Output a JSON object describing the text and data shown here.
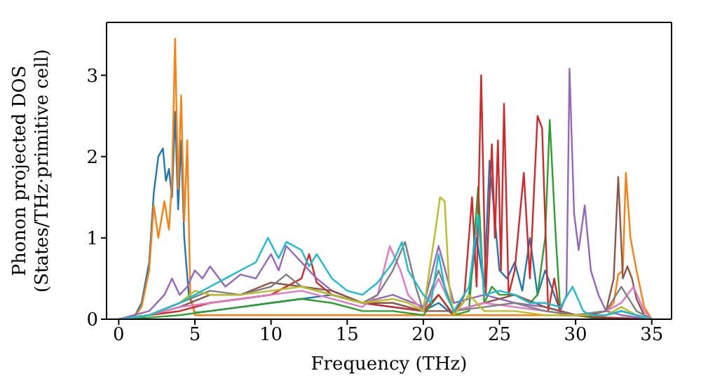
{
  "chart_data": {
    "type": "line",
    "xlabel": "Frequency (THz)",
    "ylabel": "Phonon projected DOS\n(States/THz·primitive cell)",
    "xlim": [
      -0.8,
      36.3
    ],
    "ylim": [
      0,
      3.65
    ],
    "xticks": [
      0,
      5,
      10,
      15,
      20,
      25,
      30,
      35
    ],
    "yticks": [
      0,
      1,
      2,
      3
    ],
    "marker": "none",
    "line_style": "solid",
    "series": [
      {
        "color": "#1f77b4",
        "x": [
          0,
          1,
          1.5,
          2,
          2.3,
          2.6,
          2.9,
          3.1,
          3.3,
          3.5,
          3.7,
          3.9,
          4.1,
          4.3,
          4.6,
          5,
          6,
          8,
          10,
          12,
          14,
          16,
          18,
          20,
          21,
          22,
          23,
          23.5,
          24,
          24.35,
          25,
          25.5,
          26,
          26.5,
          27,
          27.5,
          28,
          29,
          30,
          31,
          32,
          33,
          34,
          35
        ],
        "values": [
          0,
          0.02,
          0.2,
          0.7,
          1.55,
          2.0,
          2.1,
          1.7,
          1.85,
          1.5,
          2.55,
          1.35,
          2.2,
          1.0,
          0.3,
          0.08,
          0.1,
          0.15,
          0.2,
          0.25,
          0.3,
          0.2,
          0.15,
          0.1,
          0.2,
          0.05,
          0.3,
          1.0,
          0.4,
          1.95,
          0.6,
          0.5,
          0.7,
          0.35,
          1.0,
          0.3,
          0.6,
          0.1,
          0.05,
          0.05,
          0.05,
          0.1,
          0.05,
          0
        ]
      },
      {
        "color": "#ff7f0e",
        "x": [
          0,
          1,
          1.5,
          2,
          2.3,
          2.6,
          3.0,
          3.3,
          3.5,
          3.7,
          3.9,
          4.1,
          4.3,
          4.5,
          4.7,
          5,
          6,
          8,
          10,
          12,
          14,
          16,
          18,
          20,
          22,
          24,
          26,
          28,
          30,
          32,
          32.5,
          32.8,
          33.1,
          33.3,
          33.6,
          34,
          34.5,
          35
        ],
        "values": [
          0,
          0.02,
          0.15,
          0.6,
          1.4,
          1.0,
          1.45,
          1.1,
          1.7,
          3.45,
          1.6,
          2.75,
          1.2,
          2.2,
          0.3,
          0.05,
          0.05,
          0.05,
          0.05,
          0.05,
          0.05,
          0.05,
          0.05,
          0.05,
          0.05,
          0.05,
          0.05,
          0.05,
          0.05,
          0.1,
          0.2,
          0.55,
          0.6,
          1.8,
          1.0,
          0.6,
          0.15,
          0
        ]
      },
      {
        "color": "#2ca02c",
        "x": [
          0,
          2,
          4,
          6,
          8,
          10,
          12,
          14,
          16,
          18,
          20,
          21,
          22,
          23,
          23.6,
          24,
          24.5,
          25,
          26,
          27,
          27.5,
          28,
          28.3,
          28.7,
          29,
          30,
          31,
          32,
          35
        ],
        "values": [
          0,
          0.02,
          0.05,
          0.1,
          0.15,
          0.2,
          0.25,
          0.2,
          0.1,
          0.1,
          0.05,
          0.3,
          0.05,
          0.1,
          1.63,
          0.2,
          0.4,
          0.3,
          0.3,
          0.2,
          0.3,
          1.0,
          2.45,
          1.0,
          0.1,
          0.05,
          0.02,
          0.02,
          0
        ]
      },
      {
        "color": "#d62728",
        "x": [
          0,
          2,
          4,
          6,
          8,
          10,
          12,
          12.5,
          13,
          14,
          16,
          18,
          20,
          21,
          22,
          22.7,
          23.2,
          23.5,
          23.8,
          24.1,
          24.5,
          24.7,
          24.9,
          25.1,
          25.3,
          25.6,
          26,
          26.6,
          27,
          27.5,
          27.8,
          28.2,
          28.6,
          29,
          30,
          32,
          35
        ],
        "values": [
          0,
          0.05,
          0.1,
          0.2,
          0.25,
          0.3,
          0.5,
          0.8,
          0.45,
          0.3,
          0.2,
          0.15,
          0.1,
          0.3,
          0.05,
          0.3,
          1.5,
          0.4,
          3.0,
          0.3,
          2.15,
          1.0,
          2.2,
          0.6,
          2.65,
          0.3,
          0.6,
          1.8,
          0.5,
          2.5,
          2.35,
          0.1,
          0.5,
          0.05,
          0.05,
          0.02,
          0
        ]
      },
      {
        "color": "#9467bd",
        "x": [
          0,
          2,
          3,
          3.5,
          4,
          4.5,
          5,
          5.5,
          6,
          7,
          8,
          9,
          10,
          10.5,
          11,
          12,
          13,
          14,
          16,
          18,
          20,
          21,
          21.3,
          22,
          24,
          26,
          28,
          29,
          29.4,
          29.6,
          29.9,
          30.2,
          30.6,
          31,
          31.5,
          32,
          33,
          35
        ],
        "values": [
          0,
          0.1,
          0.3,
          0.5,
          0.3,
          0.4,
          0.6,
          0.5,
          0.65,
          0.4,
          0.55,
          0.5,
          0.8,
          0.6,
          0.9,
          0.7,
          0.5,
          0.35,
          0.2,
          0.3,
          0.15,
          0.9,
          0.7,
          0.2,
          0.3,
          0.2,
          0.15,
          0.1,
          0.3,
          3.08,
          1.3,
          0.85,
          1.4,
          0.6,
          0.3,
          0.1,
          0.05,
          0
        ]
      },
      {
        "color": "#8c564b",
        "x": [
          0,
          2,
          4,
          6,
          8,
          10,
          12,
          14,
          16,
          18,
          20,
          22,
          24,
          26,
          28,
          30,
          31,
          32,
          32.5,
          32.8,
          33.1,
          33.4,
          33.7,
          34,
          34.5,
          35
        ],
        "values": [
          0,
          0.05,
          0.15,
          0.3,
          0.3,
          0.45,
          0.4,
          0.35,
          0.2,
          0.2,
          0.1,
          0.1,
          0.2,
          0.3,
          0.15,
          0.05,
          0.05,
          0.1,
          0.5,
          1.75,
          0.5,
          0.65,
          0.5,
          0.25,
          0.05,
          0
        ]
      },
      {
        "color": "#e377c2",
        "x": [
          0,
          2,
          4,
          6,
          8,
          10,
          12,
          14,
          16,
          17,
          17.8,
          18.5,
          19,
          20,
          21,
          22,
          24,
          26,
          28,
          30,
          32,
          33,
          33.8,
          34.5,
          35
        ],
        "values": [
          0,
          0.05,
          0.15,
          0.2,
          0.25,
          0.3,
          0.35,
          0.25,
          0.15,
          0.3,
          0.9,
          0.6,
          0.3,
          0.1,
          0.5,
          0.1,
          0.2,
          0.15,
          0.1,
          0.05,
          0.1,
          0.2,
          0.4,
          0.1,
          0
        ]
      },
      {
        "color": "#7f7f7f",
        "x": [
          0,
          2,
          4,
          6,
          8,
          10,
          11,
          12,
          14,
          16,
          17,
          18,
          18.8,
          19.5,
          20,
          21,
          22,
          24,
          26,
          28,
          30,
          32,
          33,
          34,
          35
        ],
        "values": [
          0,
          0.05,
          0.2,
          0.35,
          0.3,
          0.4,
          0.55,
          0.4,
          0.3,
          0.2,
          0.3,
          0.6,
          0.95,
          0.4,
          0.1,
          0.6,
          0.1,
          0.15,
          0.2,
          0.1,
          0.05,
          0.1,
          0.4,
          0.1,
          0
        ]
      },
      {
        "color": "#bcbd22",
        "x": [
          0,
          2,
          4,
          5,
          6,
          8,
          10,
          12,
          14,
          16,
          18,
          19,
          20,
          20.8,
          21.1,
          21.4,
          21.7,
          22,
          23,
          24,
          26,
          28,
          30,
          32,
          33,
          34,
          35
        ],
        "values": [
          0,
          0.05,
          0.2,
          0.35,
          0.3,
          0.3,
          0.35,
          0.4,
          0.3,
          0.2,
          0.25,
          0.2,
          0.1,
          1.1,
          1.5,
          1.45,
          0.4,
          0.05,
          0.3,
          0.1,
          0.1,
          0.05,
          0.05,
          0.05,
          0.15,
          0.05,
          0
        ]
      },
      {
        "color": "#17becf",
        "x": [
          0,
          2,
          4,
          5,
          6,
          7,
          8,
          9,
          9.8,
          10.5,
          11,
          12,
          12.5,
          13,
          14,
          15,
          16,
          17,
          18,
          18.6,
          19,
          20,
          20.5,
          21,
          21.5,
          22,
          23,
          23.6,
          24,
          25,
          26,
          27,
          28,
          29,
          29.8,
          30.5,
          31,
          32,
          33,
          34,
          35
        ],
        "values": [
          0,
          0.05,
          0.2,
          0.3,
          0.4,
          0.5,
          0.6,
          0.7,
          1.0,
          0.75,
          0.95,
          0.85,
          0.65,
          0.8,
          0.5,
          0.35,
          0.3,
          0.45,
          0.7,
          0.95,
          0.6,
          0.3,
          0.2,
          0.8,
          0.3,
          0.1,
          0.4,
          1.28,
          0.3,
          0.35,
          0.3,
          0.2,
          0.2,
          0.15,
          0.4,
          0.1,
          0.05,
          0.05,
          0.1,
          0.05,
          0
        ]
      }
    ]
  }
}
